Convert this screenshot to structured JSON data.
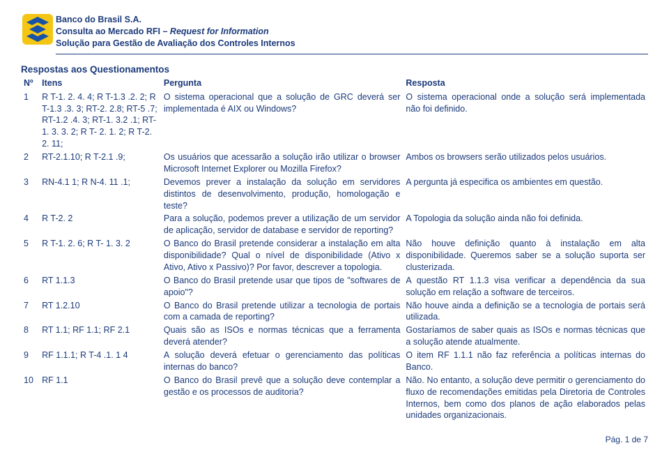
{
  "header": {
    "org": "Banco do Brasil S.A.",
    "line2a": "Consulta ao Mercado RFI – ",
    "line2b": "Request for Information",
    "line3": "Solução para Gestão de Avaliação dos Controles Internos"
  },
  "section_title": "Respostas aos Questionamentos",
  "columns": {
    "num": "Nº",
    "itens": "Itens",
    "pergunta": "Pergunta",
    "resposta": "Resposta"
  },
  "rows": [
    {
      "n": "1",
      "itens": "R T-1. 2. 4. 4; R T-1.3 .2. 2; R T-1.3 .3. 3; RT-2. 2.8; RT-5 .7; RT-1.2 .4. 3; RT-1. 3.2 .1; RT-1. 3. 3. 2; R T- 2. 1. 2; R T-2. 2. 11;",
      "pergunta": "O sistema operacional que a solução de GRC deverá ser implementada é AIX ou Windows?",
      "resposta": "O sistema operacional onde a solução será implementada não foi definido."
    },
    {
      "n": "2",
      "itens": "RT-2.1.10; R T-2.1 .9;",
      "pergunta": "Os usuários que acessarão a solução irão utilizar o browser Microsoft Internet Explorer ou Mozilla Firefox?",
      "resposta": "Ambos os browsers serão utilizados pelos usuários."
    },
    {
      "n": "3",
      "itens": "RN-4.1 1; R N-4. 11 .1;",
      "pergunta": "Devemos prever a instalação da solução em servidores distintos de desenvolvimento, produção, homologação e teste?",
      "resposta": "A pergunta já especifica os ambientes em questão."
    },
    {
      "n": "4",
      "itens": "R T-2. 2",
      "pergunta": "Para a solução, podemos prever a utilização de um servidor de aplicação, servidor de database e servidor de reporting?",
      "resposta": "A Topologia da solução ainda não foi definida."
    },
    {
      "n": "5",
      "itens": "R T-1. 2. 6; R T- 1. 3. 2",
      "pergunta": "O Banco do Brasil pretende considerar a instalação em alta disponibilidade? Qual o nível de disponibilidade (Ativo x Ativo, Ativo x Passivo)? Por favor, descrever a topologia.",
      "resposta": "Não houve definição quanto à instalação em alta disponibilidade. Queremos saber se a solução suporta ser clusterizada."
    },
    {
      "n": "6",
      "itens": "RT 1.1.3",
      "pergunta": "O Banco do Brasil pretende usar que tipos de \"softwares de apoio\"?",
      "resposta": "A questão RT 1.1.3 visa verificar a dependência da sua solução em relação a software de terceiros."
    },
    {
      "n": "7",
      "itens": "RT 1.2.10",
      "pergunta": "O Banco do Brasil pretende utilizar a tecnologia de portais com a camada de reporting?",
      "resposta": "Não houve ainda a definição se a tecnologia de portais será utilizada."
    },
    {
      "n": "8",
      "itens": "RT 1.1; RF 1.1; RF 2.1",
      "pergunta": "Quais são as ISOs e normas técnicas que a ferramenta deverá atender?",
      "resposta": "Gostaríamos de saber quais as ISOs e normas técnicas que a solução atende atualmente."
    },
    {
      "n": "9",
      "itens": "RF 1.1.1; R T-4 .1. 1 4",
      "pergunta": "A solução deverá efetuar o gerenciamento das políticas internas do banco?",
      "resposta": "O item RF 1.1.1 não faz referência a políticas internas do Banco."
    },
    {
      "n": "10",
      "itens": "RF 1.1",
      "pergunta": "O Banco do Brasil prevê que a solução deve contemplar a gestão e os processos de auditoria?",
      "resposta": "Não. No entanto, a solução deve permitir o gerenciamento do fluxo de recomendações emitidas pela Diretoria de Controles Internos, bem como dos planos de ação elaborados pelas unidades organizacionais."
    }
  ],
  "footer": "Pág. 1 de 7",
  "colors": {
    "text": "#1b3a7a",
    "logo_blue": "#1852a6",
    "logo_yellow": "#f4c614"
  }
}
